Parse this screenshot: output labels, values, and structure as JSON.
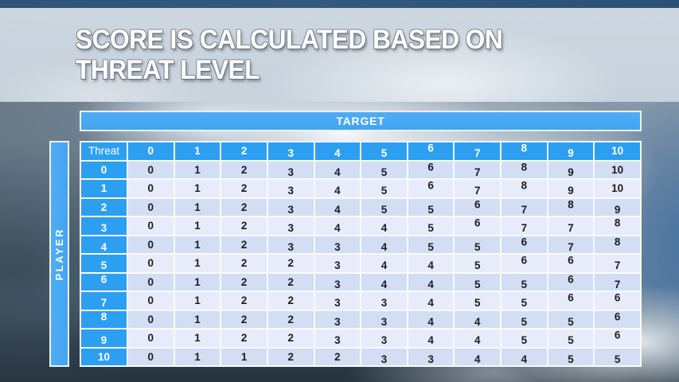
{
  "slide": {
    "title_line1": "SCORE IS CALCULATED BASED ON",
    "title_line2": "THREAT LEVEL"
  },
  "matrix": {
    "target_label": "TARGET",
    "player_label": "PLAYER",
    "corner_label": "Threat",
    "column_headers": [
      "0",
      "1",
      "2",
      "3",
      "4",
      "5",
      "6",
      "7",
      "8",
      "9",
      "10"
    ],
    "rows": [
      {
        "label": "0",
        "values": [
          "0",
          "1",
          "2",
          "3",
          "4",
          "5",
          "6",
          "7",
          "8",
          "9",
          "10"
        ]
      },
      {
        "label": "1",
        "values": [
          "0",
          "1",
          "2",
          "3",
          "4",
          "5",
          "6",
          "7",
          "8",
          "9",
          "10"
        ]
      },
      {
        "label": "2",
        "values": [
          "0",
          "1",
          "2",
          "3",
          "4",
          "5",
          "5",
          "6",
          "7",
          "8",
          "9"
        ]
      },
      {
        "label": "3",
        "values": [
          "0",
          "1",
          "2",
          "3",
          "4",
          "4",
          "5",
          "6",
          "7",
          "7",
          "8"
        ]
      },
      {
        "label": "4",
        "values": [
          "0",
          "1",
          "2",
          "3",
          "3",
          "4",
          "5",
          "5",
          "6",
          "7",
          "8"
        ]
      },
      {
        "label": "5",
        "values": [
          "0",
          "1",
          "2",
          "2",
          "3",
          "4",
          "4",
          "5",
          "6",
          "6",
          "7"
        ]
      },
      {
        "label": "6",
        "values": [
          "0",
          "1",
          "2",
          "2",
          "3",
          "4",
          "4",
          "5",
          "5",
          "6",
          "7"
        ]
      },
      {
        "label": "7",
        "values": [
          "0",
          "1",
          "2",
          "2",
          "3",
          "3",
          "4",
          "5",
          "5",
          "6",
          "6"
        ]
      },
      {
        "label": "8",
        "values": [
          "0",
          "1",
          "2",
          "2",
          "3",
          "3",
          "4",
          "4",
          "5",
          "5",
          "6"
        ]
      },
      {
        "label": "9",
        "values": [
          "0",
          "1",
          "2",
          "2",
          "3",
          "3",
          "4",
          "4",
          "5",
          "5",
          "6"
        ]
      },
      {
        "label": "10",
        "values": [
          "0",
          "1",
          "1",
          "2",
          "2",
          "3",
          "3",
          "4",
          "4",
          "5",
          "5"
        ]
      }
    ]
  },
  "colors": {
    "header_blue": "#2d9ff0",
    "bar_blue": "#47a9f3",
    "row_dark": "#d3ddf3",
    "row_light": "#e8ecfa",
    "separator_white": "#f7fafd",
    "cell_text": "#1d1d1f",
    "top_strip_blue": "#2e5479"
  }
}
